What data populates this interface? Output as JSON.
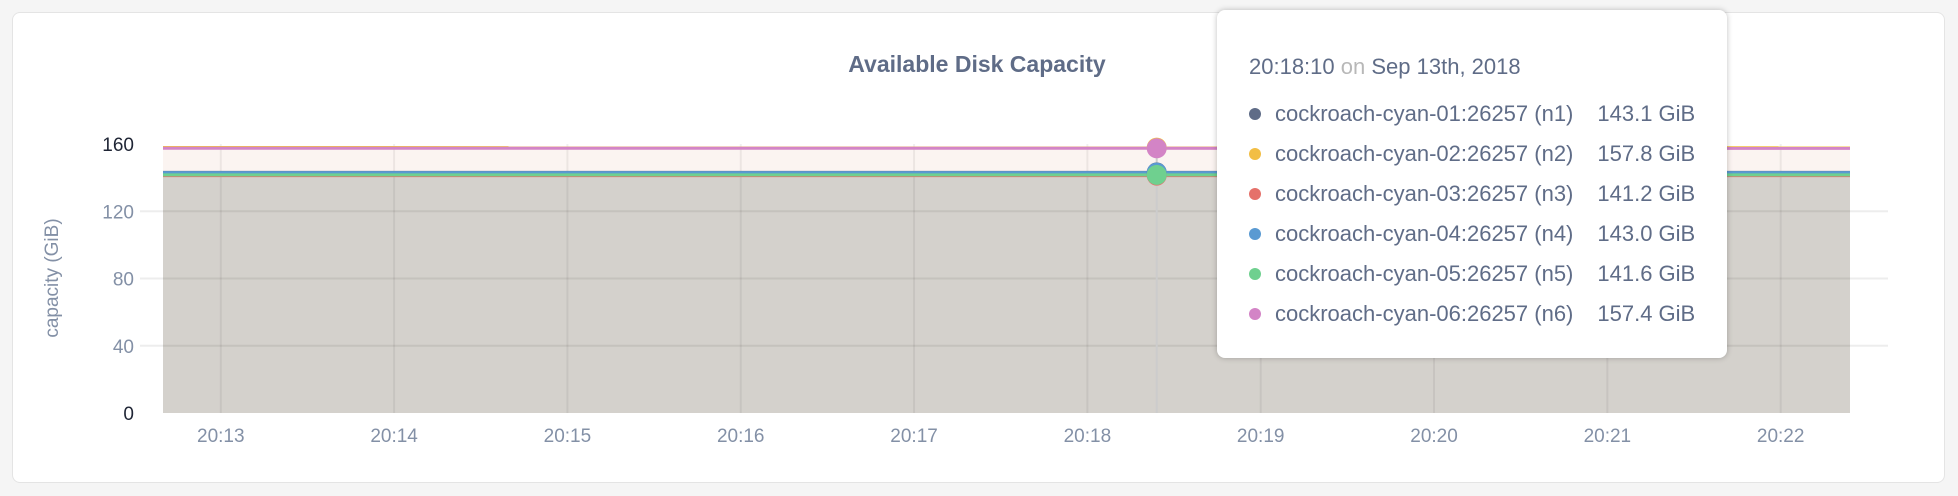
{
  "chart_data": {
    "type": "area",
    "title": "Available Disk Capacity",
    "ylabel": "capacity (GiB)",
    "xlabel": "",
    "ylim": [
      0,
      160
    ],
    "xlim": [
      "20:12:40",
      "20:22:24"
    ],
    "yticks": [
      "0",
      "40",
      "80",
      "120",
      "160"
    ],
    "xticks": [
      "20:13",
      "20:14",
      "20:15",
      "20:16",
      "20:17",
      "20:18",
      "20:19",
      "20:20",
      "20:21",
      "20:22"
    ],
    "grid": true,
    "series": [
      {
        "name": "cockroach-cyan-01:26257 (n1)",
        "color": "#5f6c87",
        "values": [
          143.1,
          143.1
        ]
      },
      {
        "name": "cockroach-cyan-02:26257 (n2)",
        "color": "#f2be45",
        "values": [
          157.9,
          157.8
        ]
      },
      {
        "name": "cockroach-cyan-03:26257 (n3)",
        "color": "#e5716a",
        "values": [
          141.2,
          141.2
        ]
      },
      {
        "name": "cockroach-cyan-04:26257 (n4)",
        "color": "#5a9ad2",
        "values": [
          143.0,
          143.0
        ]
      },
      {
        "name": "cockroach-cyan-05:26257 (n5)",
        "color": "#6fd08f",
        "values": [
          141.6,
          141.6
        ]
      },
      {
        "name": "cockroach-cyan-06:26257 (n6)",
        "color": "#d384c6",
        "values": [
          157.5,
          157.4
        ]
      }
    ],
    "hover_time": "20:18:24"
  },
  "tooltip": {
    "time": "20:18:10",
    "on": "on",
    "date": "Sep 13th, 2018",
    "rows": [
      {
        "label": "cockroach-cyan-01:26257 (n1)",
        "value": "143.1 GiB"
      },
      {
        "label": "cockroach-cyan-02:26257 (n2)",
        "value": "157.8 GiB"
      },
      {
        "label": "cockroach-cyan-03:26257 (n3)",
        "value": "141.2 GiB"
      },
      {
        "label": "cockroach-cyan-04:26257 (n4)",
        "value": "143.0 GiB"
      },
      {
        "label": "cockroach-cyan-05:26257 (n5)",
        "value": "141.6 GiB"
      },
      {
        "label": "cockroach-cyan-06:26257 (n6)",
        "value": "157.4 GiB"
      }
    ]
  }
}
